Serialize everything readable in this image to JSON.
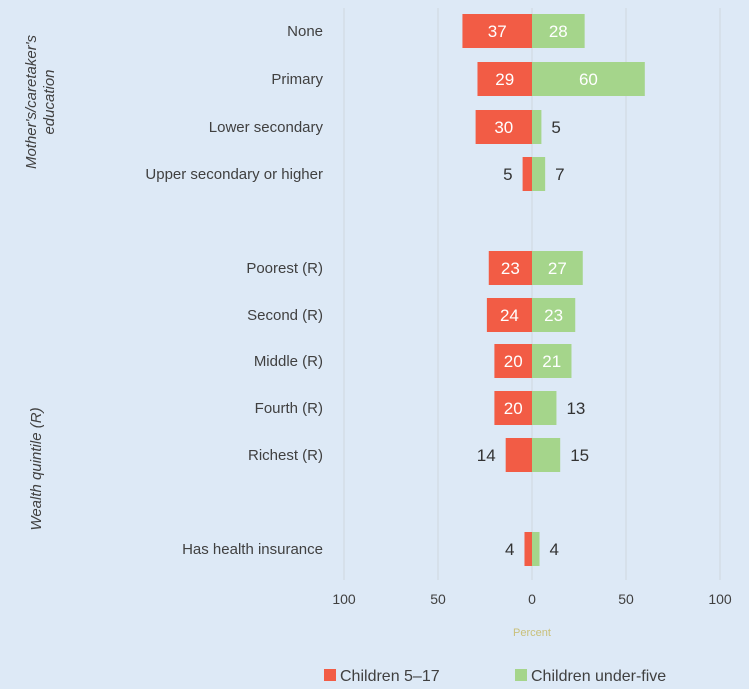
{
  "chart_data": {
    "type": "bar",
    "orientation": "horizontal-diverging",
    "categories": [
      "None",
      "Primary",
      "Lower secondary",
      "Upper secondary or higher",
      "Poorest (R)",
      "Second (R)",
      "Middle (R)",
      "Fourth (R)",
      "Richest (R)",
      "Has health insurance"
    ],
    "groups": [
      {
        "label": "Mother's/caretaker's\neducation",
        "categories": [
          "None",
          "Primary",
          "Lower secondary",
          "Upper secondary or higher"
        ]
      },
      {
        "label": "Wealth quintile (R)",
        "categories": [
          "Poorest (R)",
          "Second (R)",
          "Middle (R)",
          "Fourth (R)",
          "Richest (R)",
          "Has health insurance"
        ]
      }
    ],
    "series": [
      {
        "name": "Children 5–17",
        "side": "left",
        "color": "#f25c45",
        "values": [
          37,
          29,
          30,
          5,
          23,
          24,
          20,
          20,
          14,
          4
        ]
      },
      {
        "name": "Children under-five",
        "side": "right",
        "color": "#a5d58b",
        "values": [
          28,
          60,
          5,
          7,
          27,
          23,
          21,
          13,
          15,
          4
        ]
      }
    ],
    "xlabel": "Percent",
    "x_ticks": [
      "100",
      "50",
      "0",
      "50",
      "100"
    ],
    "xlim": [
      -100,
      100
    ],
    "grid": true,
    "legend_position": "bottom"
  }
}
